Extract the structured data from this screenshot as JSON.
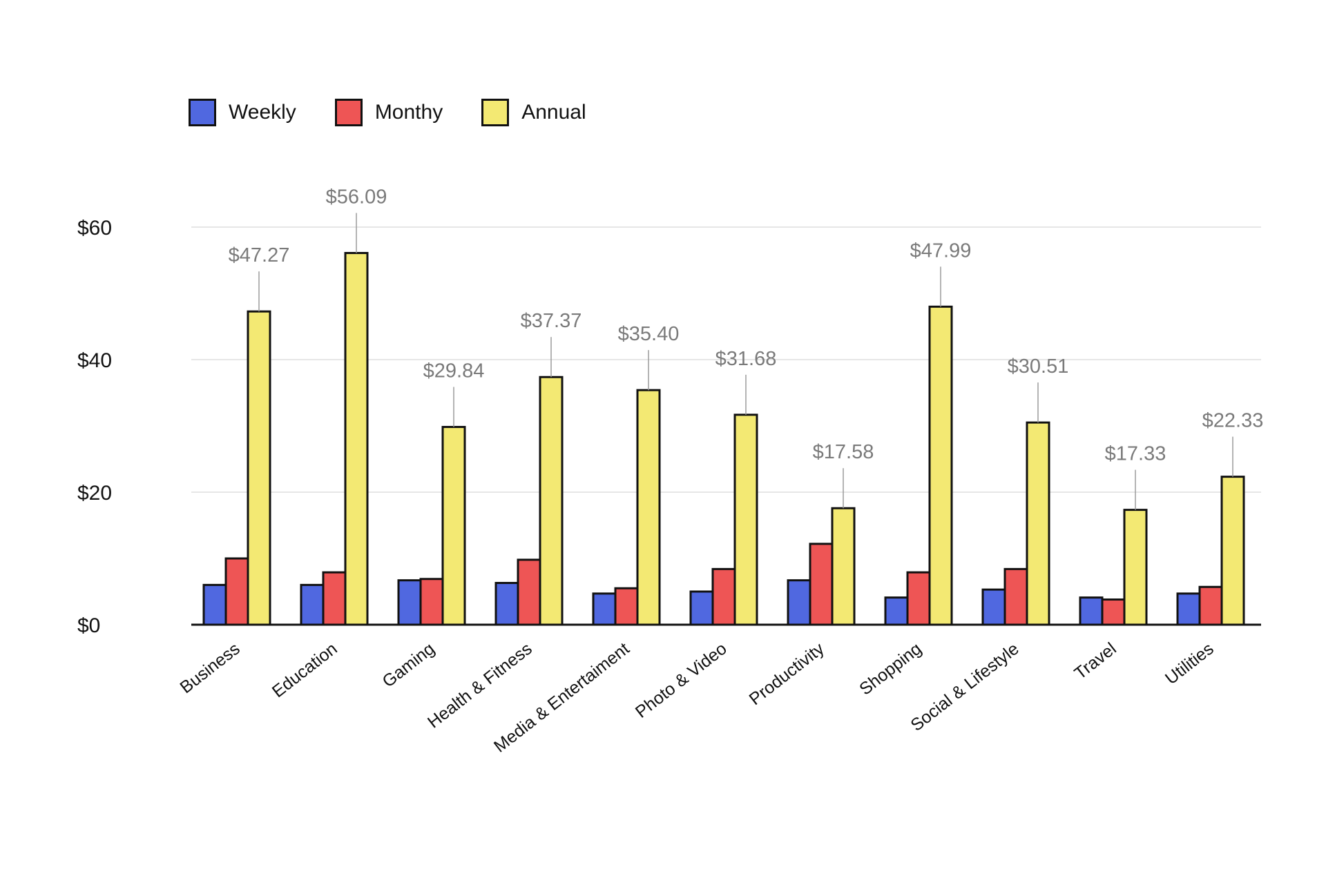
{
  "chart_data": {
    "type": "bar",
    "title": "",
    "xlabel": "",
    "ylabel": "",
    "ylim": [
      0,
      62
    ],
    "yticks": [
      0,
      20,
      40,
      60
    ],
    "ytick_labels": [
      "$0",
      "$20",
      "$40",
      "$60"
    ],
    "grid": true,
    "legend_position": "top-left",
    "categories": [
      "Business",
      "Education",
      "Gaming",
      "Health & Fitness",
      "Media & Entertaiment",
      "Photo & Video",
      "Productivity",
      "Shopping",
      "Social & Lifestyle",
      "Travel",
      "Utilities"
    ],
    "series": [
      {
        "name": "Weekly",
        "color": "#5068e0",
        "values": [
          6.0,
          6.0,
          6.7,
          6.3,
          4.7,
          5.0,
          6.7,
          4.1,
          5.3,
          4.1,
          4.7
        ]
      },
      {
        "name": "Monthy",
        "color": "#ee5555",
        "values": [
          10.0,
          7.9,
          6.9,
          9.8,
          5.5,
          8.4,
          12.2,
          7.9,
          8.4,
          3.8,
          5.7
        ]
      },
      {
        "name": "Annual",
        "color": "#f3e973",
        "values": [
          47.27,
          56.09,
          29.84,
          37.37,
          35.4,
          31.68,
          17.58,
          47.99,
          30.51,
          17.33,
          22.33
        ]
      }
    ],
    "annual_labels": [
      "$47.27",
      "$56.09",
      "$29.84",
      "$37.37",
      "$35.40",
      "$31.68",
      "$17.58",
      "$47.99",
      "$30.51",
      "$17.33",
      "$22.33"
    ],
    "colors": {
      "gridline": "#e6e6e6",
      "axis": "#111111",
      "tick_text": "#111111",
      "data_label": "#7a7a7a",
      "bar_outline": "#111111"
    }
  }
}
